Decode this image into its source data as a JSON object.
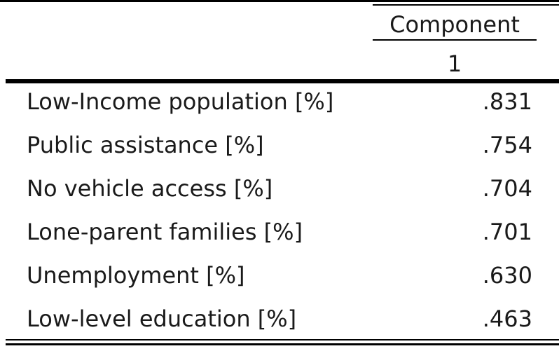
{
  "table": {
    "header": {
      "component_label": "Component",
      "component_number": "1"
    },
    "rows": [
      {
        "label": "Low-Income population [%]",
        "value": ".831"
      },
      {
        "label": "Public assistance [%]",
        "value": ".754"
      },
      {
        "label": "No vehicle access [%]",
        "value": ".704"
      },
      {
        "label": "Lone-parent families [%]",
        "value": ".701"
      },
      {
        "label": "Unemployment [%]",
        "value": ".630"
      },
      {
        "label": "Low-level education [%]",
        "value": ".463"
      }
    ]
  }
}
